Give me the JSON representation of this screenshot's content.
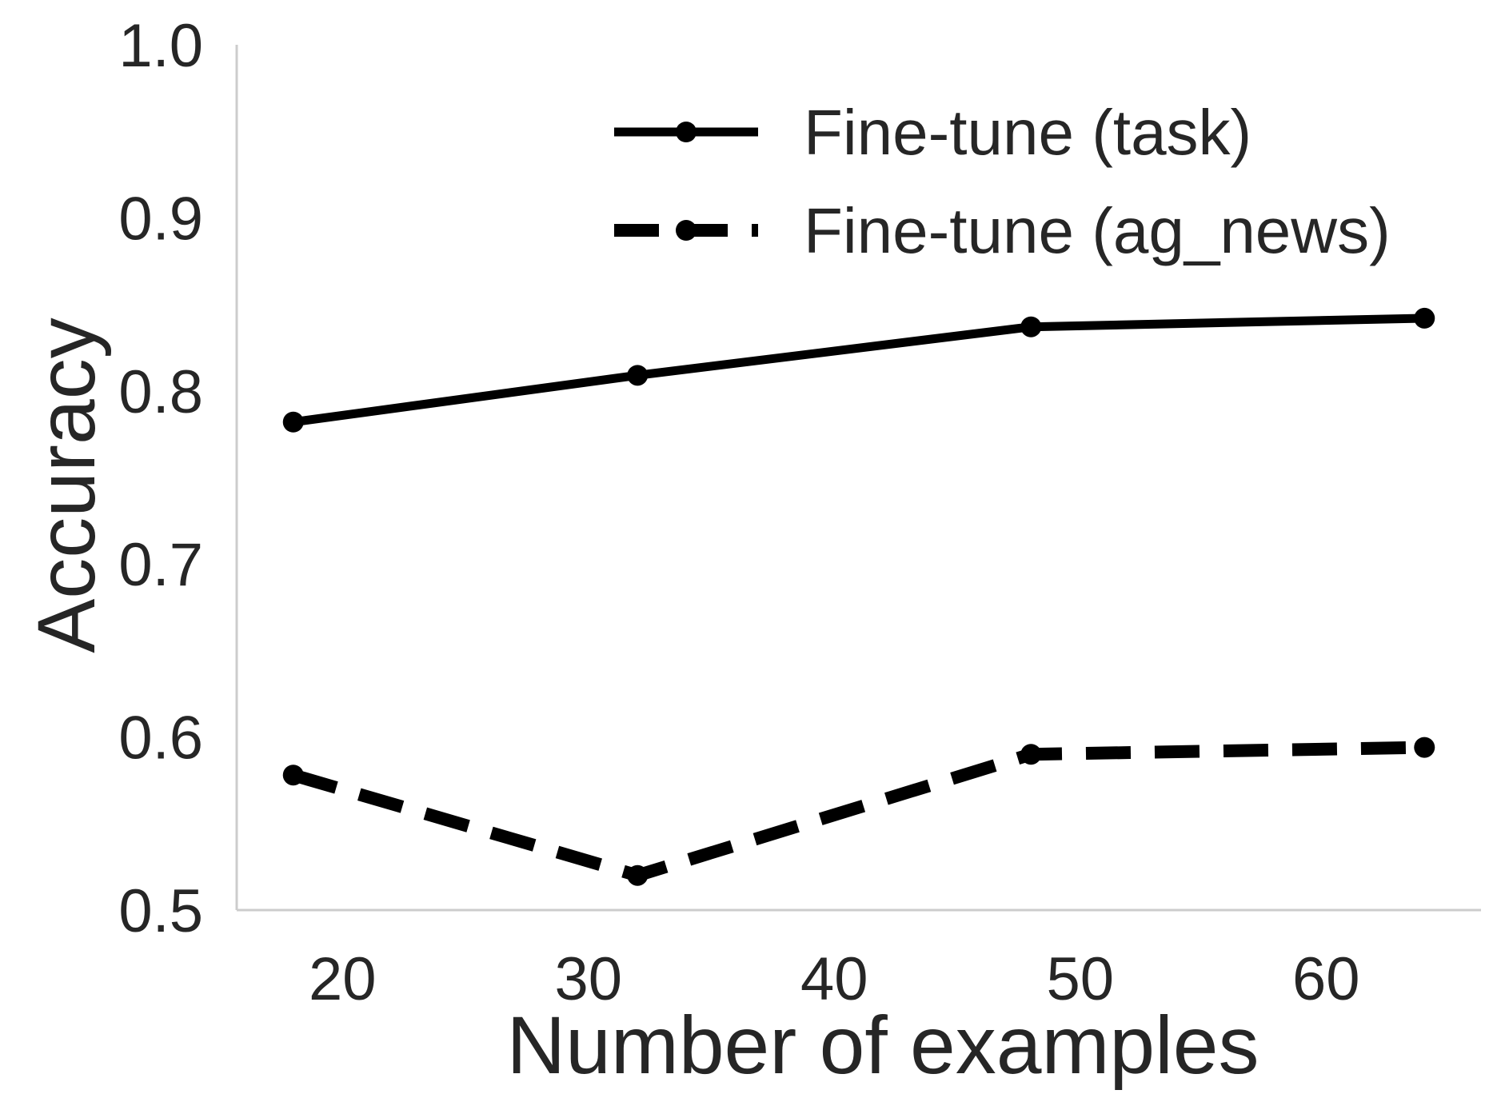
{
  "chart_data": {
    "type": "line",
    "title": "",
    "xlabel": "Number of examples",
    "ylabel": "Accuracy",
    "xlim": [
      15.7,
      66.3
    ],
    "ylim": [
      0.5,
      1.0
    ],
    "xticks": [
      20,
      30,
      40,
      50,
      60
    ],
    "xtick_labels": [
      "20",
      "30",
      "40",
      "50",
      "60"
    ],
    "yticks": [
      0.5,
      0.6,
      0.7,
      0.8,
      0.9,
      1.0
    ],
    "ytick_labels": [
      "0.5",
      "0.6",
      "0.7",
      "0.8",
      "0.9",
      "1.0"
    ],
    "grid": false,
    "legend_position": "top-right",
    "x": [
      18,
      32,
      48,
      64
    ],
    "series": [
      {
        "name": "Fine-tune (task)",
        "values": [
          0.782,
          0.809,
          0.837,
          0.842
        ],
        "line_style": "solid",
        "marker": "circle",
        "color": "#000000"
      },
      {
        "name": "Fine-tune (ag_news)",
        "values": [
          0.578,
          0.52,
          0.59,
          0.594
        ],
        "line_style": "dashed",
        "marker": "circle",
        "color": "#000000"
      }
    ]
  }
}
